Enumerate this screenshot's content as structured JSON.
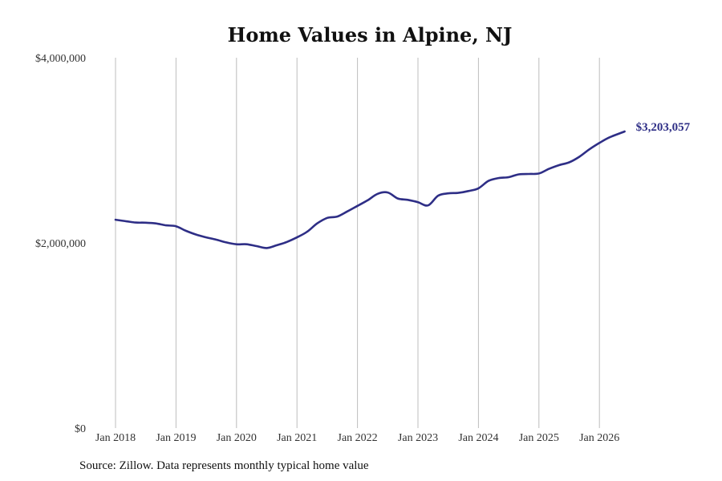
{
  "chart_data": {
    "type": "line",
    "title": "Home Values in Alpine, NJ",
    "xlabel": "",
    "ylabel": "",
    "ylim": [
      0,
      4000000
    ],
    "yticks": [
      0,
      2000000,
      4000000
    ],
    "ytick_labels": [
      "$0",
      "$2,000,000",
      "$4,000,000"
    ],
    "xtick_labels": [
      "Jan 2018",
      "Jan 2019",
      "Jan 2020",
      "Jan 2021",
      "Jan 2022",
      "Jan 2023",
      "Jan 2024",
      "Jan 2025",
      "Jan 2026"
    ],
    "xtick_years": [
      2018,
      2019,
      2020,
      2021,
      2022,
      2023,
      2024,
      2025,
      2026
    ],
    "grid": "vertical",
    "legend": "none",
    "line_color": "#2e2e86",
    "end_label": "$3,203,057",
    "series": [
      {
        "x": [
          "2018-01",
          "2018-03",
          "2018-05",
          "2018-07",
          "2018-09",
          "2018-11",
          "2019-01",
          "2019-03",
          "2019-05",
          "2019-07",
          "2019-09",
          "2019-11",
          "2020-01",
          "2020-03",
          "2020-05",
          "2020-07",
          "2020-09",
          "2020-11",
          "2021-01",
          "2021-03",
          "2021-05",
          "2021-07",
          "2021-09",
          "2021-11",
          "2022-01",
          "2022-03",
          "2022-05",
          "2022-07",
          "2022-09",
          "2022-11",
          "2023-01",
          "2023-03",
          "2023-05",
          "2023-07",
          "2023-09",
          "2023-11",
          "2024-01",
          "2024-03",
          "2024-05",
          "2024-07",
          "2024-09",
          "2024-11",
          "2025-01",
          "2025-03",
          "2025-05",
          "2025-07",
          "2025-09",
          "2025-11",
          "2026-01",
          "2026-03",
          "2026-06"
        ],
        "values": [
          2250000,
          2235000,
          2220000,
          2218000,
          2210000,
          2190000,
          2180000,
          2130000,
          2090000,
          2060000,
          2035000,
          2005000,
          1985000,
          1985000,
          1965000,
          1945000,
          1975000,
          2010000,
          2060000,
          2120000,
          2210000,
          2270000,
          2285000,
          2340000,
          2400000,
          2460000,
          2530000,
          2545000,
          2480000,
          2465000,
          2440000,
          2405000,
          2510000,
          2535000,
          2540000,
          2560000,
          2590000,
          2670000,
          2700000,
          2710000,
          2740000,
          2745000,
          2750000,
          2800000,
          2840000,
          2870000,
          2930000,
          3010000,
          3080000,
          3140000,
          3203057
        ]
      }
    ]
  },
  "footer": {
    "source": "Source: Zillow. Data represents monthly typical home value"
  }
}
